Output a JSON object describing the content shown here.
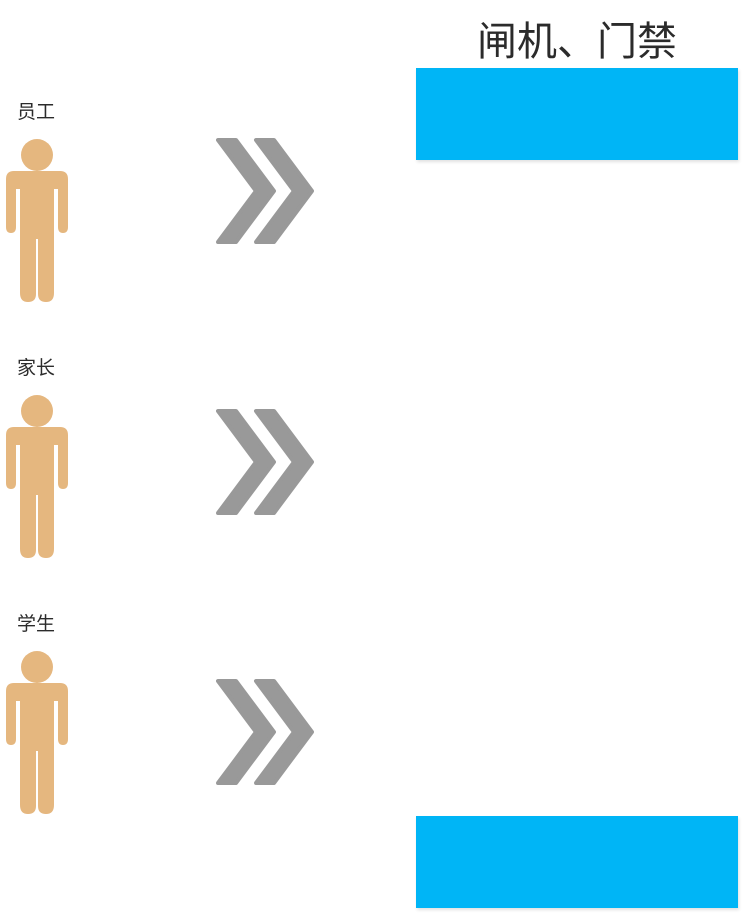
{
  "gate": {
    "title": "闸机、门禁",
    "color": "#00B5F6"
  },
  "people": [
    {
      "label": "员工",
      "icon": "person-icon"
    },
    {
      "label": "家长",
      "icon": "person-icon"
    },
    {
      "label": "学生",
      "icon": "person-icon"
    }
  ],
  "colors": {
    "person": "#E5B77F",
    "arrow": "#999999"
  },
  "arrow_icon": "double-chevron-right-icon"
}
